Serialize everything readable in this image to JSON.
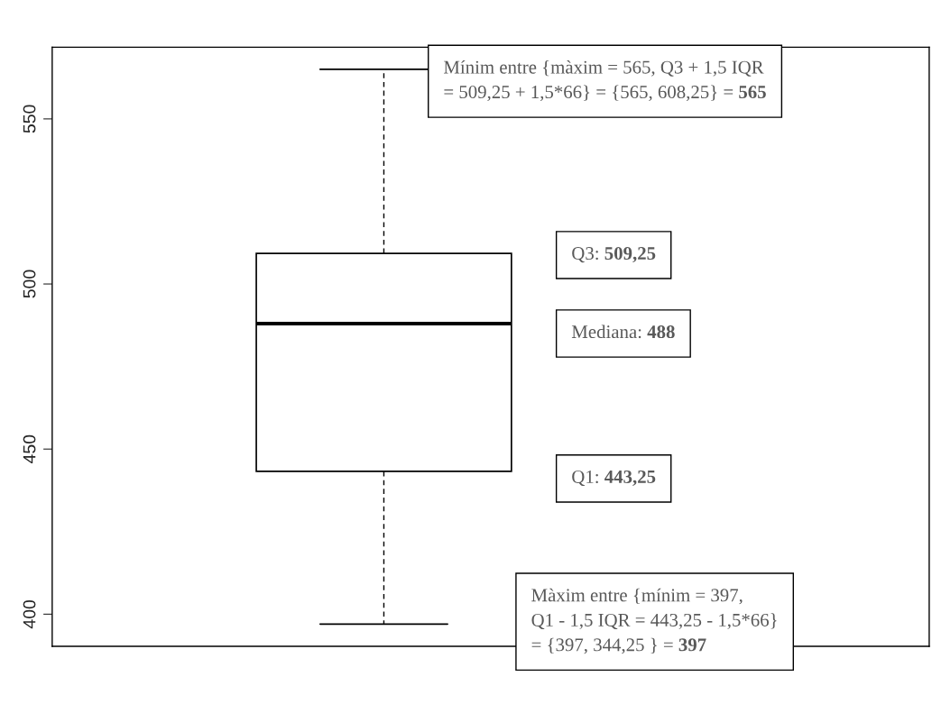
{
  "chart_data": {
    "type": "box",
    "categories": [
      null
    ],
    "boxes": [
      {
        "low": 397,
        "q1": 443.25,
        "median": 488,
        "q3": 509.25,
        "high": 565
      }
    ],
    "ylim": [
      390.28,
      571.72
    ],
    "yticks": [
      400,
      450,
      500,
      550
    ],
    "grid": false,
    "annotations": [
      "Mínim entre {màxim = 565, Q3 + 1,5 IQR\n= 509,25 + 1,5*66} = {565, 608,25} = 565",
      "Q3: 509,25",
      "Mediana: 488",
      "Q1: 443,25",
      "Màxim entre {mínim = 397,\nQ1 - 1,5 IQR = 443,25 - 1,5*66}\n= {397, 344,25 } = 397"
    ]
  }
}
